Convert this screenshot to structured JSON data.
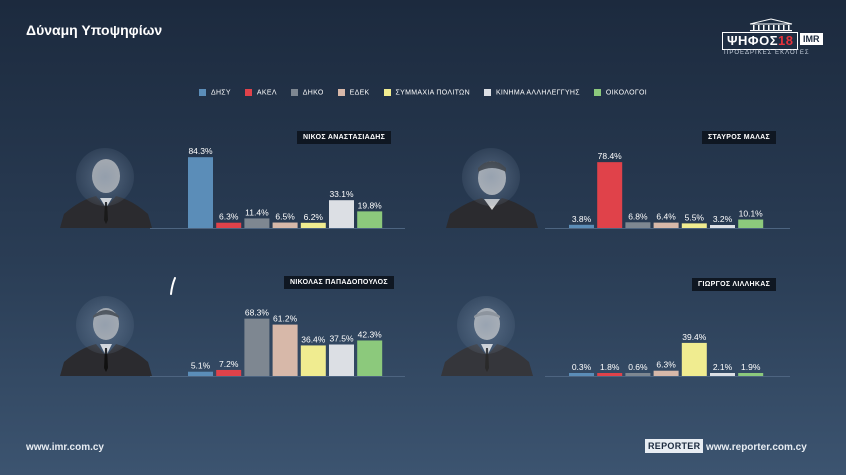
{
  "header": {
    "title": "Δύναμη Υποψηφίων"
  },
  "logo": {
    "main": "ΨΗΦΟΣ",
    "year": "18",
    "brand": "IMR",
    "subtitle": "ΠΡΟΕΔΡΙΚΕΣ ΕΚΛΟΓΕΣ"
  },
  "colors": {
    "ДΗΣΥ": "#5b8db8"
  },
  "legend": [
    {
      "label": "ΔΗΣΥ",
      "color": "#5b8db8"
    },
    {
      "label": "ΑΚΕΛ",
      "color": "#e0424a"
    },
    {
      "label": "ΔΗΚΟ",
      "color": "#7e8791"
    },
    {
      "label": "ΕΔΕΚ",
      "color": "#d7b8a9"
    },
    {
      "label": "ΣΥΜΜΑΧΙΑ ΠΟΛΙΤΩΝ",
      "color": "#f0ec90"
    },
    {
      "label": "ΚΙΝΗΜΑ ΑΛΛΗΛΕΓΓΥΗΣ",
      "color": "#dcdfe4"
    },
    {
      "label": "ΟΙΚΟΛΟΓΟΙ",
      "color": "#8cc97c"
    }
  ],
  "chart_data": [
    {
      "type": "bar",
      "title": "ΝΙΚΟΣ ΑΝΑΣΤΑΣΙΑΔΗΣ",
      "categories": [
        "ΔΗΣΥ",
        "ΑΚΕΛ",
        "ΔΗΚΟ",
        "ΕΔΕΚ",
        "ΣΥΜΜΑΧΙΑ ΠΟΛΙΤΩΝ",
        "ΚΙΝΗΜΑ ΑΛΛΗΛΕΓΓΥΗΣ",
        "ΟΙΚΟΛΟΓΟΙ"
      ],
      "values": [
        84.3,
        6.3,
        11.4,
        6.5,
        6.2,
        33.1,
        19.8
      ],
      "labels": [
        "84.3%",
        "6.3%",
        "11.4%",
        "6.5%",
        "6.2%",
        "33.1%",
        "19.8%"
      ],
      "ylim": [
        0,
        100
      ]
    },
    {
      "type": "bar",
      "title": "ΣΤΑΥΡΟΣ ΜΑΛΑΣ",
      "categories": [
        "ΔΗΣΥ",
        "ΑΚΕΛ",
        "ΔΗΚΟ",
        "ΕΔΕΚ",
        "ΣΥΜΜΑΧΙΑ ΠΟΛΙΤΩΝ",
        "ΚΙΝΗΜΑ ΑΛΛΗΛΕΓΓΥΗΣ",
        "ΟΙΚΟΛΟΓΟΙ"
      ],
      "values": [
        3.8,
        78.4,
        6.8,
        6.4,
        5.5,
        3.2,
        10.1
      ],
      "labels": [
        "3.8%",
        "78.4%",
        "6.8%",
        "6.4%",
        "5.5%",
        "3.2%",
        "10.1%"
      ],
      "ylim": [
        0,
        100
      ]
    },
    {
      "type": "bar",
      "title": "ΝΙΚΟΛΑΣ ΠΑΠΑΔΟΠΟΥΛΟΣ",
      "categories": [
        "ΔΗΣΥ",
        "ΑΚΕΛ",
        "ΔΗΚΟ",
        "ΕΔΕΚ",
        "ΣΥΜΜΑΧΙΑ ΠΟΛΙΤΩΝ",
        "ΚΙΝΗΜΑ ΑΛΛΗΛΕΓΓΥΗΣ",
        "ΟΙΚΟΛΟΓΟΙ"
      ],
      "values": [
        5.1,
        7.2,
        68.3,
        61.2,
        36.4,
        37.5,
        42.3
      ],
      "labels": [
        "5.1%",
        "7.2%",
        "68.3%",
        "61.2%",
        "36.4%",
        "37.5%",
        "42.3%"
      ],
      "ylim": [
        0,
        100
      ]
    },
    {
      "type": "bar",
      "title": "ΓΙΩΡΓΟΣ ΛΙΛΛΗΚΑΣ",
      "categories": [
        "ΔΗΣΥ",
        "ΑΚΕΛ",
        "ΔΗΚΟ",
        "ΕΔΕΚ",
        "ΣΥΜΜΑΧΙΑ ΠΟΛΙΤΩΝ",
        "ΚΙΝΗΜΑ ΑΛΛΗΛΕΓΓΥΗΣ",
        "ΟΙΚΟΛΟΓΟΙ"
      ],
      "values": [
        0.3,
        1.8,
        0.6,
        6.3,
        39.4,
        2.1,
        1.9
      ],
      "labels": [
        "0.3%",
        "1.8%",
        "0.6%",
        "6.3%",
        "39.4%",
        "2.1%",
        "1.9%"
      ],
      "ylim": [
        0,
        100
      ]
    }
  ],
  "footer": {
    "left_url": "www.imr.com.cy",
    "reporter": "REPORTER",
    "right_url": "www.reporter.com.cy"
  }
}
